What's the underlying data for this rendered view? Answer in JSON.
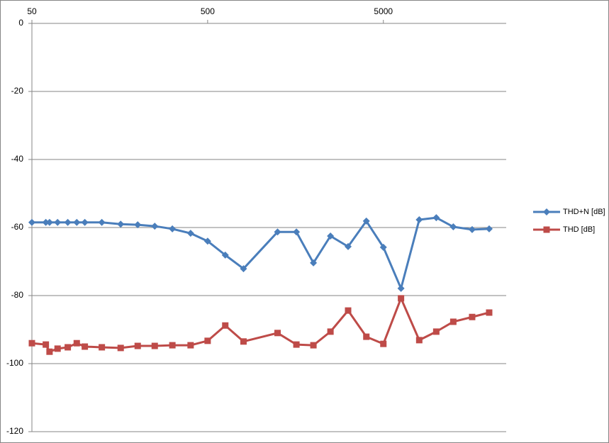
{
  "chart_data": {
    "type": "line",
    "x": [
      50,
      60,
      63,
      70,
      80,
      90,
      100,
      125,
      160,
      200,
      250,
      315,
      400,
      500,
      630,
      800,
      1250,
      1600,
      2000,
      2500,
      3150,
      4000,
      5000,
      6300,
      8000,
      10000,
      12500,
      16000,
      20000
    ],
    "series": [
      {
        "name": "THD+N [dB]",
        "color": "#4a7ebb",
        "marker": "diamond",
        "values": [
          -58.5,
          -58.5,
          -58.5,
          -58.5,
          -58.5,
          -58.5,
          -58.5,
          -58.5,
          -59,
          -59.2,
          -59.6,
          -60.4,
          -61.7,
          -64,
          -68.1,
          -72.1,
          -61.3,
          -61.3,
          -70.4,
          -62.5,
          -65.6,
          -58.1,
          -65.8,
          -77.9,
          -57.7,
          -57.1,
          -59.8,
          -60.6,
          -60.4
        ]
      },
      {
        "name": "THD [dB]",
        "color": "#be4b48",
        "marker": "square",
        "values": [
          -94,
          -94.4,
          -96.5,
          -95.6,
          -95.2,
          -94,
          -95,
          -95.2,
          -95.4,
          -94.8,
          -94.8,
          -94.6,
          -94.6,
          -93.3,
          -88.8,
          -93.5,
          -91,
          -94.4,
          -94.6,
          -90.6,
          -84.4,
          -92.1,
          -94.2,
          -80.8,
          -93.1,
          -90.6,
          -87.7,
          -86.3,
          -85
        ]
      }
    ],
    "xlim": [
      50,
      25000
    ],
    "xscale": "log",
    "xticks": [
      50,
      500,
      5000
    ],
    "ylim": [
      -120,
      0
    ],
    "yticks": [
      0,
      -20,
      -40,
      -60,
      -80,
      -100,
      -120
    ],
    "grid": true,
    "legend": "right"
  }
}
